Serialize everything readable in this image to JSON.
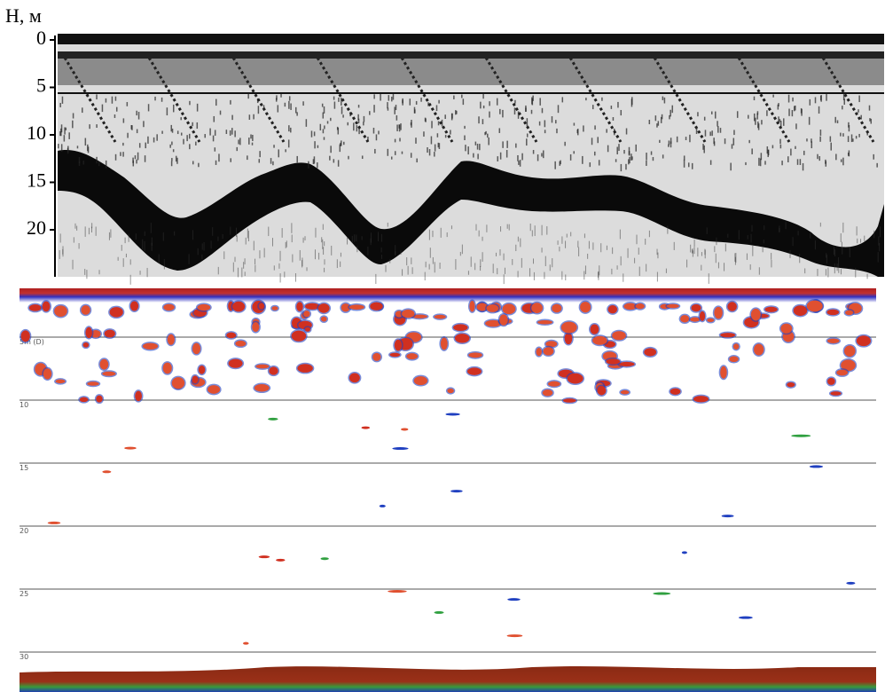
{
  "top_panel": {
    "axis_label": "Н, м",
    "ticks": [
      0,
      5,
      10,
      15,
      20
    ]
  },
  "bottom_panel": {
    "depth_lines": [
      {
        "value": 5,
        "label": "5m (D)"
      },
      10,
      15,
      20,
      25,
      30
    ]
  }
}
